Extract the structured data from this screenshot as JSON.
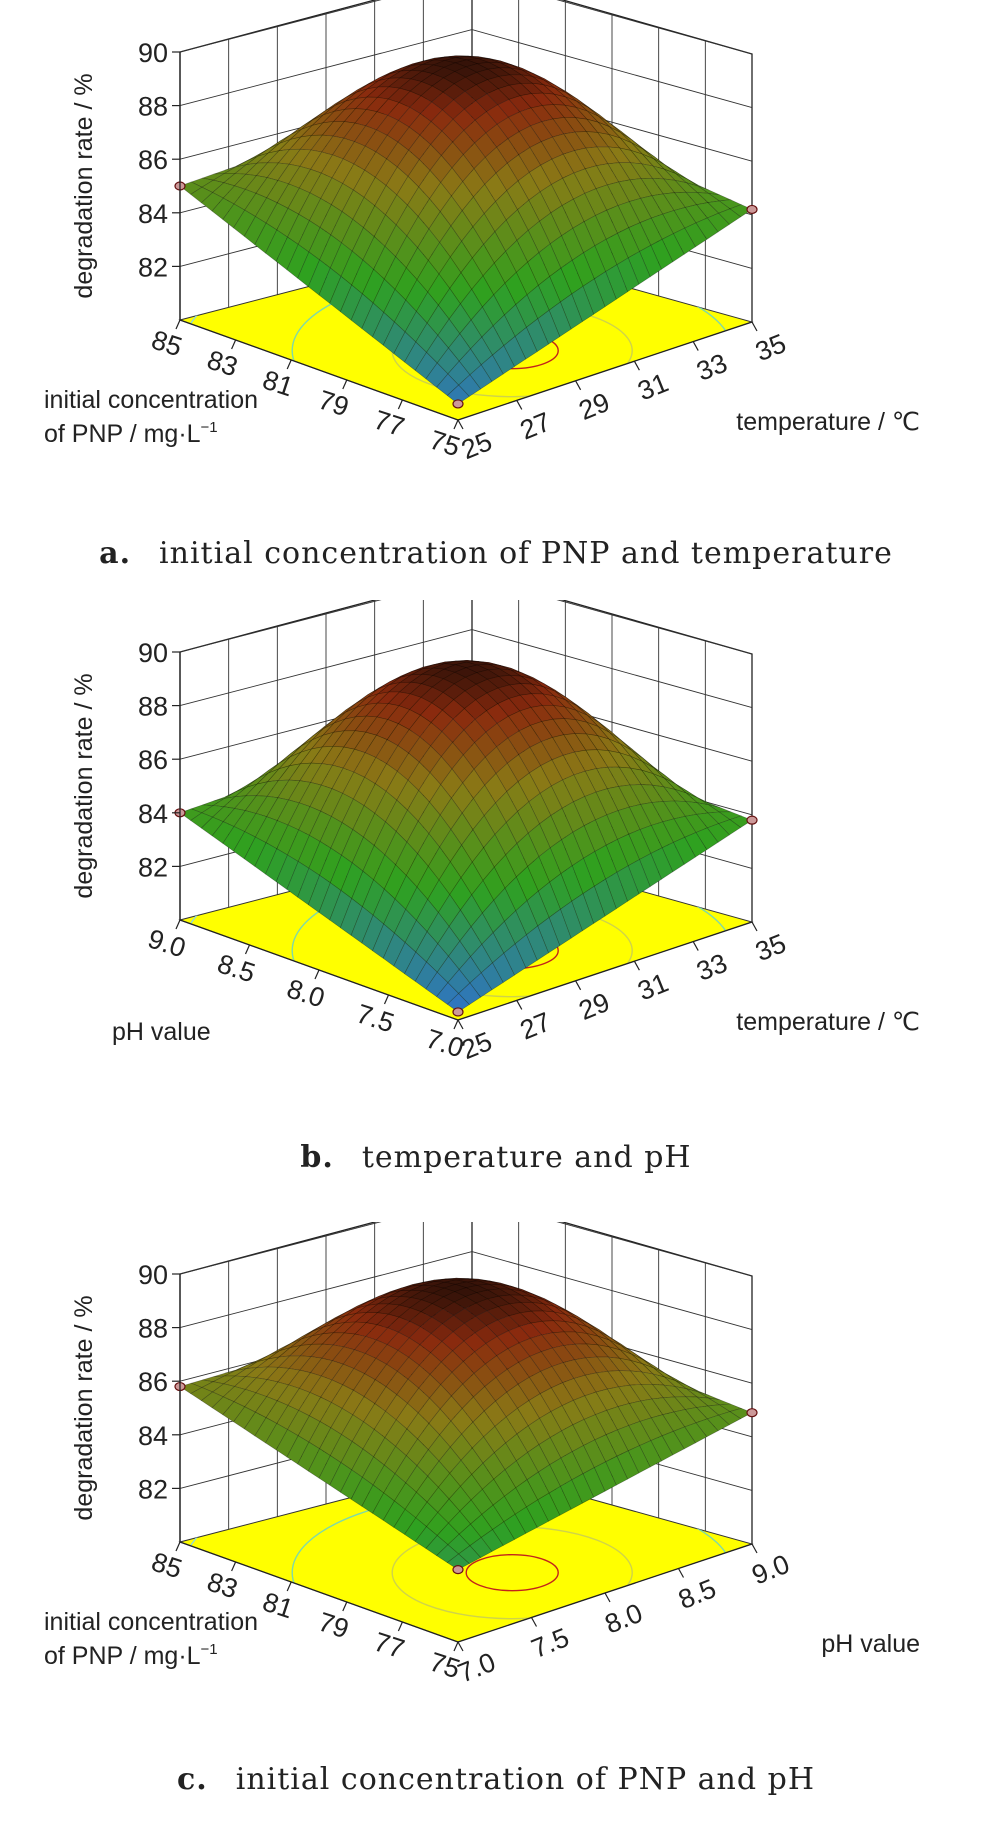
{
  "figure": {
    "panels": [
      {
        "id": "a",
        "caption_letter": "a.",
        "caption_text": "initial concentration of PNP and temperature",
        "zlabel": "degradation rate / %",
        "zticks": [
          "90",
          "88",
          "86",
          "84",
          "82"
        ],
        "left_axis": {
          "label_lines": [
            "initial concentration",
            "of PNP / mg·L"
          ],
          "label_sup": "−1",
          "ticks": [
            "85",
            "83",
            "81",
            "79",
            "77",
            "75"
          ]
        },
        "right_axis": {
          "label_lines": [
            "temperature / ℃"
          ],
          "label_sup": "",
          "ticks": [
            "25",
            "27",
            "29",
            "31",
            "33",
            "35"
          ]
        }
      },
      {
        "id": "b",
        "caption_letter": "b.",
        "caption_text": "temperature and pH",
        "zlabel": "degradation rate / %",
        "zticks": [
          "90",
          "88",
          "86",
          "84",
          "82"
        ],
        "left_axis": {
          "label_lines": [
            "pH value"
          ],
          "label_sup": "",
          "ticks": [
            "9.0",
            "8.5",
            "8.0",
            "7.5",
            "7.0"
          ]
        },
        "right_axis": {
          "label_lines": [
            "temperature / ℃"
          ],
          "label_sup": "",
          "ticks": [
            "25",
            "27",
            "29",
            "31",
            "33",
            "35"
          ]
        }
      },
      {
        "id": "c",
        "caption_letter": "c.",
        "caption_text": "initial concentration of PNP and pH",
        "zlabel": "degradation rate / %",
        "zticks": [
          "90",
          "88",
          "86",
          "84",
          "82"
        ],
        "left_axis": {
          "label_lines": [
            "initial concentration",
            "of PNP / mg·L"
          ],
          "label_sup": "−1",
          "ticks": [
            "85",
            "83",
            "81",
            "79",
            "77",
            "75"
          ]
        },
        "right_axis": {
          "label_lines": [
            "pH value"
          ],
          "label_sup": "",
          "ticks": [
            "7.0",
            "7.5",
            "8.0",
            "8.5",
            "9.0"
          ]
        }
      }
    ]
  },
  "chart_data": [
    {
      "type": "surface",
      "x": {
        "label": "initial concentration of PNP / mg·L−1",
        "range": [
          75,
          85
        ]
      },
      "y": {
        "label": "temperature / ℃",
        "range": [
          25,
          35
        ]
      },
      "z": {
        "label": "degradation rate / %",
        "range": [
          80,
          90
        ]
      },
      "surface_values": {
        "center": 89.3,
        "corner_x_max_y_min": 85.0,
        "corner_x_min_y_max": 84.2,
        "corner_x_min_y_min": 80.6,
        "corner_x_max_y_max": 86.0
      },
      "design_points": [
        [
          85,
          25,
          85.0
        ],
        [
          75,
          35,
          84.2
        ],
        [
          75,
          25,
          80.6
        ]
      ],
      "colors": {
        "low": "#2f6fd6",
        "mid": "#2fa11f",
        "high": "#8a2a0e",
        "peak": "#050505",
        "floor": "#ffff00"
      }
    },
    {
      "type": "surface",
      "x": {
        "label": "pH value",
        "range": [
          7.0,
          9.0
        ]
      },
      "y": {
        "label": "temperature / ℃",
        "range": [
          25,
          35
        ]
      },
      "z": {
        "label": "degradation rate / %",
        "range": [
          80,
          90
        ]
      },
      "surface_values": {
        "center": 89.3,
        "corner_x_max_y_min": 84.0,
        "corner_x_min_y_max": 83.8,
        "corner_x_min_y_min": 80.3,
        "corner_x_max_y_max": 85.0
      },
      "design_points": [
        [
          9.0,
          25,
          84.0
        ],
        [
          7.0,
          35,
          83.8
        ],
        [
          7.0,
          25,
          80.3
        ]
      ],
      "colors": {
        "low": "#2f6fd6",
        "mid": "#2fa11f",
        "high": "#8a2a0e",
        "peak": "#050505",
        "floor": "#ffff00"
      }
    },
    {
      "type": "surface",
      "x": {
        "label": "initial concentration of PNP / mg·L−1",
        "range": [
          75,
          85
        ]
      },
      "y": {
        "label": "pH value",
        "range": [
          7.0,
          9.0
        ]
      },
      "z": {
        "label": "degradation rate / %",
        "range": [
          80,
          90
        ]
      },
      "surface_values": {
        "center": 89.4,
        "corner_x_max_y_min": 85.8,
        "corner_x_min_y_max": 84.9,
        "corner_x_min_y_min": 82.7,
        "corner_x_max_y_max": 86.2
      },
      "design_points": [
        [
          85,
          7.0,
          85.8
        ],
        [
          75,
          9.0,
          84.9
        ],
        [
          75,
          7.0,
          82.7
        ]
      ],
      "colors": {
        "low": "#2f6fd6",
        "mid": "#2fa11f",
        "high": "#8a2a0e",
        "peak": "#050505",
        "floor": "#ffff00"
      }
    }
  ]
}
